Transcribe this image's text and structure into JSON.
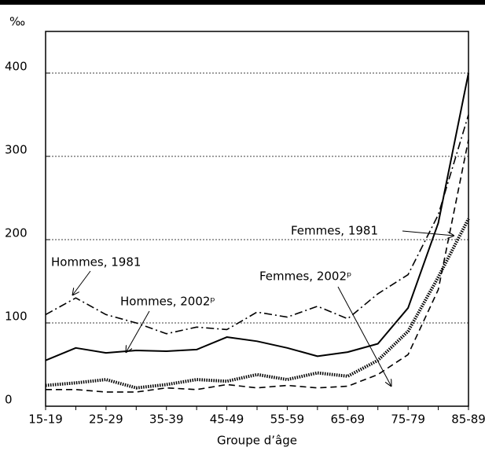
{
  "chart_data": {
    "type": "line",
    "y_label": "‰",
    "x_label": "Groupe d’âge",
    "categories": [
      "15-19",
      null,
      "25-29",
      null,
      "35-39",
      null,
      "45-49",
      null,
      "55-59",
      null,
      "65-69",
      null,
      "75-79",
      null,
      "85-89"
    ],
    "series": [
      {
        "name": "Hommes, 1981",
        "color": "#000000",
        "values": [
          110,
          130,
          110,
          100,
          87,
          95,
          92,
          113,
          107,
          120,
          105,
          135,
          158,
          230,
          350
        ]
      },
      {
        "name": "Hommes, 2002ᵖ",
        "color": "#000000",
        "values": [
          55,
          70,
          64,
          67,
          66,
          68,
          83,
          78,
          70,
          60,
          65,
          75,
          118,
          220,
          400
        ]
      },
      {
        "name": "Femmes, 1981",
        "color": "#000000",
        "values": [
          20,
          20,
          17,
          17,
          22,
          20,
          26,
          22,
          25,
          22,
          24,
          38,
          62,
          140,
          320
        ]
      },
      {
        "name": "Femmes, 2002ᵖ",
        "color": "#000000",
        "values": [
          25,
          28,
          32,
          22,
          26,
          32,
          30,
          38,
          32,
          40,
          36,
          55,
          90,
          155,
          225
        ]
      }
    ],
    "ylim": [
      0,
      450
    ],
    "yticks": [
      0,
      100,
      200,
      300,
      400
    ],
    "grid": true
  }
}
